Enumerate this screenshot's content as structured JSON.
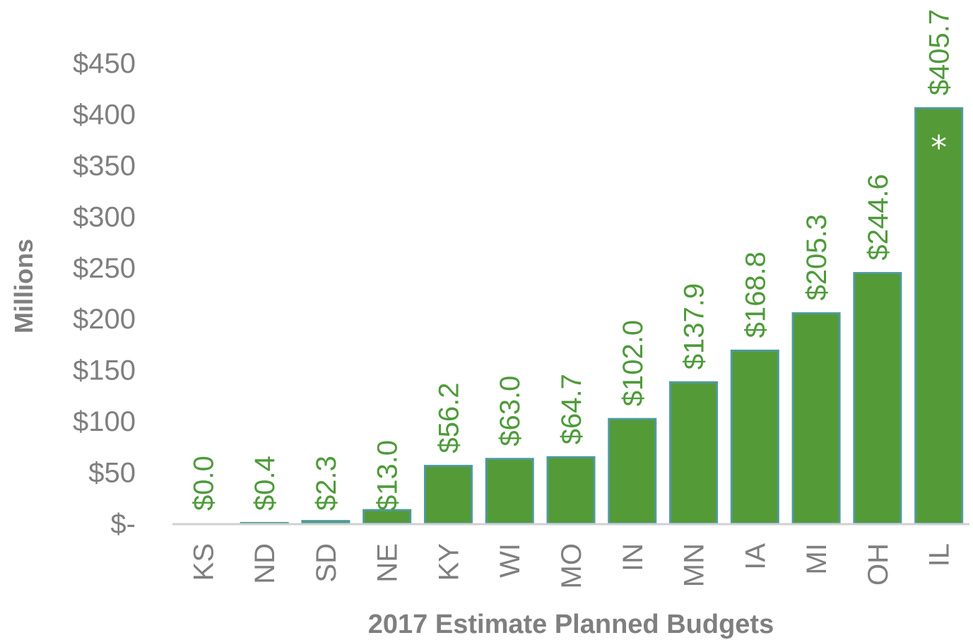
{
  "chart_data": {
    "type": "bar",
    "xlabel": "2017 Estimate Planned Budgets",
    "ylabel": "Millions",
    "categories": [
      "KS",
      "ND",
      "SD",
      "NE",
      "KY",
      "WI",
      "MO",
      "IN",
      "MN",
      "IA",
      "MI",
      "OH",
      "IL"
    ],
    "values": [
      0.0,
      0.4,
      2.3,
      13.0,
      56.2,
      63.0,
      64.7,
      102.0,
      137.9,
      168.8,
      205.3,
      244.6,
      405.7
    ],
    "data_labels": [
      "$0.0",
      "$0.4",
      "$2.3",
      "$13.0",
      "$56.2",
      "$63.0",
      "$64.7",
      "$102.0",
      "$137.9",
      "$168.8",
      "$205.3",
      "$244.6",
      "$405.7"
    ],
    "yticks": [
      0,
      50,
      100,
      150,
      200,
      250,
      300,
      350,
      400,
      450
    ],
    "ytick_labels": [
      "$-",
      "$50",
      "$100",
      "$150",
      "$200",
      "$250",
      "$300",
      "$350",
      "$400",
      "$450"
    ],
    "ylim": [
      0,
      450
    ],
    "grid": false,
    "legend": "none",
    "annotation": {
      "category": "IL",
      "text": "*"
    },
    "colors": {
      "bar": "#549a36",
      "bar_edge": "#4f9a9a",
      "label": "#4e9a3a",
      "axis": "#d0d0d0",
      "text": "#7f7f7f"
    }
  }
}
